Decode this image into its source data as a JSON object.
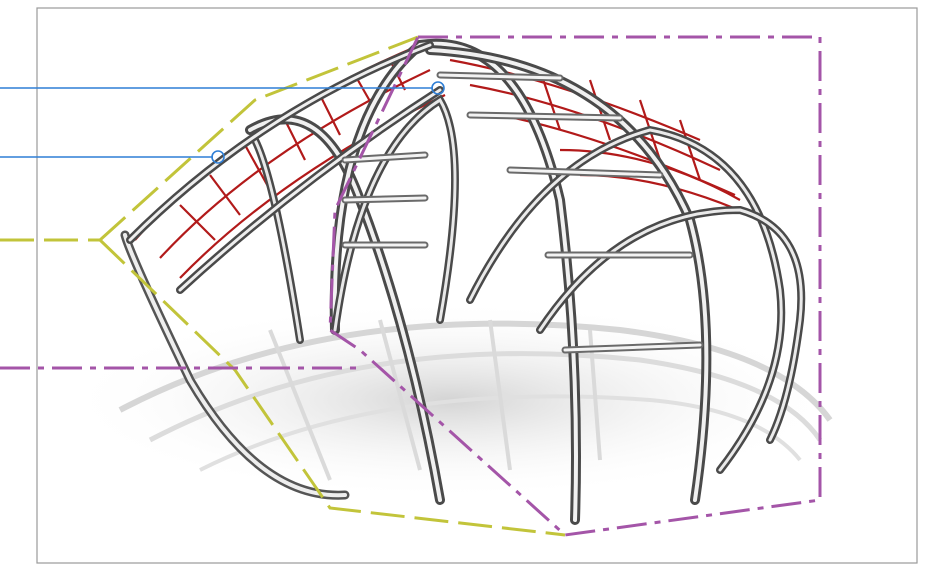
{
  "diagram": {
    "type": "technical-illustration",
    "subject": "climbing-dome",
    "colors": {
      "frame_border": "#9a9a9a",
      "callout_blue": "#2f7fd6",
      "outline_yellow": "#c2c43a",
      "outline_purple": "#a455a8",
      "net_red": "#b21a1a",
      "steel_light": "#f2f2f2",
      "steel_mid": "#b8b8b8",
      "steel_dark": "#4a4a4a",
      "shadow": "#d9d9d9"
    },
    "callouts": [
      {
        "name": "callout-top-net",
        "color": "callout_blue"
      },
      {
        "name": "callout-side-net",
        "color": "callout_blue"
      },
      {
        "name": "callout-yellow-zone",
        "color": "outline_yellow"
      },
      {
        "name": "callout-purple-zone",
        "color": "outline_purple"
      }
    ]
  }
}
